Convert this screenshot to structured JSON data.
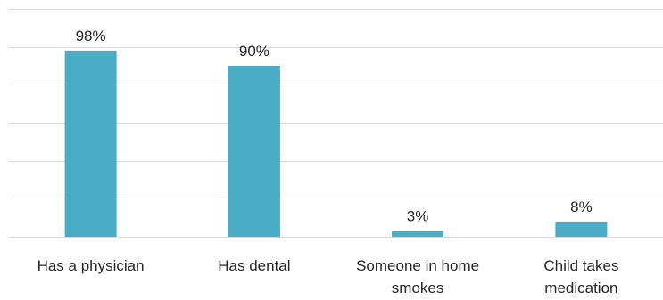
{
  "chart_data": {
    "type": "bar",
    "categories": [
      [
        "Has a physician"
      ],
      [
        "Has dental"
      ],
      [
        "Someone in home",
        "smokes"
      ],
      [
        "Child takes",
        "medication"
      ]
    ],
    "values": [
      98,
      90,
      3,
      8
    ],
    "data_labels": [
      "98%",
      "90%",
      "3%",
      "8%"
    ],
    "ylim": [
      0,
      120
    ],
    "grid": true,
    "gridline_values": [
      0,
      20,
      40,
      60,
      80,
      100,
      120
    ],
    "legend": "none",
    "bar_color": "#4bacc6"
  }
}
